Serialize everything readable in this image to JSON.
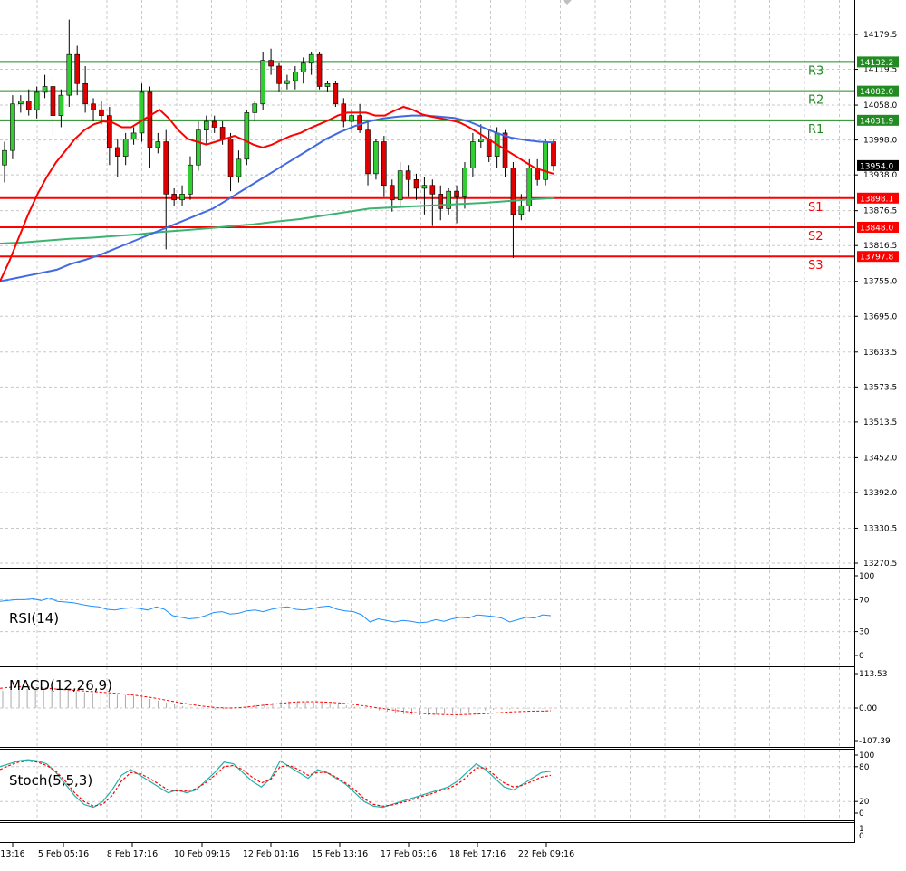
{
  "chart_data": {
    "type": "candlestick",
    "x_tick_labels": [
      "13:16",
      "5 Feb 05:16",
      "8 Feb 17:16",
      "10 Feb 09:16",
      "12 Feb 01:16",
      "15 Feb 13:16",
      "17 Feb 05:16",
      "18 Feb 17:16",
      "22 Feb 09:16"
    ],
    "y_tick_labels": [
      "14179.5",
      "14119.5",
      "14058.0",
      "13998.0",
      "13938.0",
      "13876.5",
      "13816.5",
      "13755.0",
      "13695.0",
      "13633.5",
      "13573.5",
      "13513.5",
      "13452.0",
      "13392.0",
      "13330.5",
      "13270.5"
    ],
    "ylim": [
      13264,
      14224
    ],
    "candles": [
      {
        "o": 13955,
        "h": 13995,
        "l": 13925,
        "c": 13980
      },
      {
        "o": 13980,
        "h": 14075,
        "l": 13965,
        "c": 14060
      },
      {
        "o": 14060,
        "h": 14075,
        "l": 14045,
        "c": 14065
      },
      {
        "o": 14065,
        "h": 14085,
        "l": 14040,
        "c": 14050
      },
      {
        "o": 14050,
        "h": 14090,
        "l": 14035,
        "c": 14080
      },
      {
        "o": 14080,
        "h": 14110,
        "l": 14070,
        "c": 14090
      },
      {
        "o": 14090,
        "h": 14105,
        "l": 14005,
        "c": 14040
      },
      {
        "o": 14040,
        "h": 14085,
        "l": 14020,
        "c": 14075
      },
      {
        "o": 14075,
        "h": 14205,
        "l": 14055,
        "c": 14145
      },
      {
        "o": 14145,
        "h": 14160,
        "l": 14075,
        "c": 14095
      },
      {
        "o": 14095,
        "h": 14125,
        "l": 14045,
        "c": 14060
      },
      {
        "o": 14060,
        "h": 14070,
        "l": 14030,
        "c": 14050
      },
      {
        "o": 14050,
        "h": 14065,
        "l": 14025,
        "c": 14040
      },
      {
        "o": 14040,
        "h": 14055,
        "l": 13955,
        "c": 13985
      },
      {
        "o": 13985,
        "h": 14000,
        "l": 13935,
        "c": 13970
      },
      {
        "o": 13970,
        "h": 14010,
        "l": 13955,
        "c": 14000
      },
      {
        "o": 14000,
        "h": 14020,
        "l": 13990,
        "c": 14010
      },
      {
        "o": 14010,
        "h": 14095,
        "l": 13995,
        "c": 14080
      },
      {
        "o": 14080,
        "h": 14090,
        "l": 13950,
        "c": 13985
      },
      {
        "o": 13985,
        "h": 14010,
        "l": 13975,
        "c": 13995
      },
      {
        "o": 13995,
        "h": 14015,
        "l": 13810,
        "c": 13905
      },
      {
        "o": 13905,
        "h": 13915,
        "l": 13885,
        "c": 13895
      },
      {
        "o": 13895,
        "h": 13920,
        "l": 13885,
        "c": 13905
      },
      {
        "o": 13905,
        "h": 13970,
        "l": 13895,
        "c": 13955
      },
      {
        "o": 13955,
        "h": 14030,
        "l": 13945,
        "c": 14015
      },
      {
        "o": 14015,
        "h": 14040,
        "l": 13990,
        "c": 14030
      },
      {
        "o": 14030,
        "h": 14040,
        "l": 14010,
        "c": 14020
      },
      {
        "o": 14020,
        "h": 14030,
        "l": 13990,
        "c": 14000
      },
      {
        "o": 14000,
        "h": 14010,
        "l": 13910,
        "c": 13935
      },
      {
        "o": 13935,
        "h": 13980,
        "l": 13925,
        "c": 13965
      },
      {
        "o": 13965,
        "h": 14050,
        "l": 13955,
        "c": 14045
      },
      {
        "o": 14045,
        "h": 14065,
        "l": 14030,
        "c": 14060
      },
      {
        "o": 14060,
        "h": 14150,
        "l": 14050,
        "c": 14135
      },
      {
        "o": 14135,
        "h": 14155,
        "l": 14110,
        "c": 14125
      },
      {
        "o": 14125,
        "h": 14130,
        "l": 14080,
        "c": 14095
      },
      {
        "o": 14095,
        "h": 14110,
        "l": 14085,
        "c": 14100
      },
      {
        "o": 14100,
        "h": 14125,
        "l": 14085,
        "c": 14115
      },
      {
        "o": 14115,
        "h": 14140,
        "l": 14095,
        "c": 14130
      },
      {
        "o": 14130,
        "h": 14150,
        "l": 14110,
        "c": 14145
      },
      {
        "o": 14145,
        "h": 14150,
        "l": 14085,
        "c": 14090
      },
      {
        "o": 14090,
        "h": 14100,
        "l": 14080,
        "c": 14095
      },
      {
        "o": 14095,
        "h": 14100,
        "l": 14055,
        "c": 14060
      },
      {
        "o": 14060,
        "h": 14070,
        "l": 14020,
        "c": 14030
      },
      {
        "o": 14030,
        "h": 14050,
        "l": 14015,
        "c": 14040
      },
      {
        "o": 14040,
        "h": 14060,
        "l": 14010,
        "c": 14015
      },
      {
        "o": 14015,
        "h": 14030,
        "l": 13920,
        "c": 13940
      },
      {
        "o": 13940,
        "h": 14000,
        "l": 13930,
        "c": 13995
      },
      {
        "o": 13995,
        "h": 14005,
        "l": 13900,
        "c": 13920
      },
      {
        "o": 13920,
        "h": 13930,
        "l": 13875,
        "c": 13895
      },
      {
        "o": 13895,
        "h": 13960,
        "l": 13885,
        "c": 13945
      },
      {
        "o": 13945,
        "h": 13955,
        "l": 13900,
        "c": 13930
      },
      {
        "o": 13930,
        "h": 13940,
        "l": 13895,
        "c": 13915
      },
      {
        "o": 13915,
        "h": 13935,
        "l": 13870,
        "c": 13920
      },
      {
        "o": 13920,
        "h": 13930,
        "l": 13850,
        "c": 13905
      },
      {
        "o": 13905,
        "h": 13920,
        "l": 13860,
        "c": 13880
      },
      {
        "o": 13880,
        "h": 13915,
        "l": 13870,
        "c": 13910
      },
      {
        "o": 13910,
        "h": 13920,
        "l": 13855,
        "c": 13900
      },
      {
        "o": 13900,
        "h": 13960,
        "l": 13880,
        "c": 13950
      },
      {
        "o": 13950,
        "h": 14010,
        "l": 13935,
        "c": 13995
      },
      {
        "o": 13995,
        "h": 14025,
        "l": 13985,
        "c": 14000
      },
      {
        "o": 14000,
        "h": 14015,
        "l": 13960,
        "c": 13970
      },
      {
        "o": 13970,
        "h": 14020,
        "l": 13950,
        "c": 14010
      },
      {
        "o": 14010,
        "h": 14015,
        "l": 13935,
        "c": 13950
      },
      {
        "o": 13950,
        "h": 13960,
        "l": 13795,
        "c": 13870
      },
      {
        "o": 13870,
        "h": 13905,
        "l": 13860,
        "c": 13885
      },
      {
        "o": 13885,
        "h": 13965,
        "l": 13875,
        "c": 13950
      },
      {
        "o": 13950,
        "h": 13965,
        "l": 13920,
        "c": 13930
      },
      {
        "o": 13930,
        "h": 14000,
        "l": 13920,
        "c": 13995
      },
      {
        "o": 13995,
        "h": 14000,
        "l": 13945,
        "c": 13954
      }
    ],
    "ma_red": [
      13755,
      13790,
      13830,
      13870,
      13905,
      13935,
      13960,
      13980,
      14000,
      14015,
      14025,
      14030,
      14028,
      14020,
      14020,
      14030,
      14040,
      14050,
      14035,
      14015,
      14000,
      13995,
      13990,
      13995,
      14000,
      14005,
      13998,
      13990,
      13985,
      13990,
      13998,
      14005,
      14010,
      14018,
      14025,
      14032,
      14040,
      14045,
      14045,
      14045,
      14040,
      14040,
      14048,
      14055,
      14050,
      14042,
      14038,
      14035,
      14032,
      14028,
      14020,
      14010,
      14000,
      13990,
      13980,
      13970,
      13960,
      13950,
      13945,
      13940
    ],
    "ma_blue": [
      13755,
      13760,
      13765,
      13770,
      13775,
      13785,
      13792,
      13800,
      13810,
      13820,
      13830,
      13840,
      13850,
      13860,
      13870,
      13880,
      13895,
      13910,
      13925,
      13940,
      13955,
      13970,
      13985,
      14000,
      14012,
      14022,
      14030,
      14035,
      14038,
      14040,
      14040,
      14038,
      14036,
      14030,
      14020,
      14010,
      14002,
      13998,
      13995,
      13994
    ],
    "ma_green": [
      13820,
      13822,
      13825,
      13828,
      13830,
      13833,
      13836,
      13840,
      13843,
      13846,
      13850,
      13853,
      13858,
      13862,
      13868,
      13874,
      13880,
      13882,
      13884,
      13886,
      13888,
      13890,
      13893,
      13896,
      13898
    ],
    "levels": [
      {
        "name": "R3",
        "value": 14132.2,
        "color": "#228b22",
        "label": "14132.2"
      },
      {
        "name": "R2",
        "value": 14082.0,
        "color": "#228b22",
        "label": "14082.0"
      },
      {
        "name": "R1",
        "value": 14031.9,
        "color": "#228b22",
        "label": "14031.9"
      },
      {
        "name": "S1",
        "value": 13898.1,
        "color": "#ff0000",
        "label": "13898.1"
      },
      {
        "name": "S2",
        "value": 13848.0,
        "color": "#ff0000",
        "label": "13848.0"
      },
      {
        "name": "S3",
        "value": 13797.8,
        "color": "#ff0000",
        "label": "13797.8"
      }
    ],
    "current_price": {
      "value": 13954.0,
      "label": "13954.0"
    },
    "rsi": {
      "label": "RSI(14)",
      "ticks": [
        "100",
        "70",
        "30",
        "0"
      ],
      "values": [
        68,
        69,
        70,
        70,
        71,
        69,
        72,
        68,
        67,
        66,
        64,
        62,
        61,
        58,
        57,
        59,
        60,
        59,
        57,
        61,
        58,
        50,
        48,
        46,
        47,
        50,
        54,
        55,
        52,
        53,
        56,
        57,
        55,
        58,
        60,
        61,
        58,
        57,
        59,
        61,
        62,
        58,
        56,
        55,
        51,
        42,
        46,
        44,
        42,
        44,
        43,
        41,
        42,
        45,
        43,
        46,
        48,
        47,
        51,
        50,
        49,
        47,
        42,
        45,
        48,
        47,
        51,
        50
      ]
    },
    "macd": {
      "label": "MACD(12,26,9)",
      "ticks": [
        "113.53",
        "0.00",
        "-107.39"
      ],
      "hist": [
        57,
        60,
        62,
        63,
        64,
        63,
        62,
        60,
        58,
        55,
        52,
        50,
        48,
        46,
        44,
        42,
        40,
        36,
        30,
        24,
        18,
        12,
        6,
        2,
        -2,
        -4,
        -5,
        -4,
        -2,
        2,
        6,
        10,
        14,
        18,
        20,
        22,
        22,
        21,
        20,
        18,
        16,
        12,
        8,
        4,
        0,
        -4,
        -8,
        -12,
        -16,
        -20,
        -22,
        -24,
        -24,
        -22,
        -20,
        -18,
        -16,
        -14,
        -10,
        -8,
        -6,
        -4,
        -4,
        -3,
        -2,
        -2,
        -2,
        -1
      ],
      "signal": [
        65,
        68,
        70,
        70,
        68,
        66,
        64,
        62,
        60,
        58,
        56,
        54,
        52,
        50,
        48,
        45,
        42,
        38,
        34,
        29,
        24,
        19,
        14,
        10,
        6,
        3,
        1,
        0,
        1,
        3,
        6,
        9,
        12,
        15,
        18,
        20,
        21,
        21,
        20,
        19,
        17,
        14,
        11,
        7,
        3,
        -1,
        -5,
        -9,
        -12,
        -15,
        -18,
        -20,
        -21,
        -22,
        -22,
        -21,
        -20,
        -19,
        -17,
        -15,
        -13,
        -12,
        -11,
        -10,
        -10,
        -9
      ]
    },
    "stoch": {
      "label": "Stoch(5,5,3)",
      "ticks": [
        "100",
        "80",
        "20",
        "0"
      ],
      "k": [
        80,
        85,
        90,
        92,
        90,
        85,
        70,
        50,
        30,
        15,
        10,
        20,
        40,
        65,
        75,
        65,
        55,
        45,
        35,
        40,
        35,
        40,
        55,
        70,
        88,
        85,
        70,
        55,
        45,
        60,
        90,
        80,
        70,
        60,
        75,
        70,
        60,
        50,
        35,
        20,
        12,
        10,
        15,
        20,
        25,
        30,
        35,
        40,
        45,
        55,
        70,
        85,
        75,
        60,
        45,
        40,
        50,
        60,
        70,
        72
      ],
      "d": [
        75,
        82,
        88,
        90,
        88,
        82,
        72,
        55,
        35,
        20,
        12,
        15,
        30,
        55,
        70,
        68,
        60,
        50,
        40,
        38,
        38,
        42,
        52,
        65,
        80,
        82,
        75,
        62,
        52,
        58,
        80,
        82,
        75,
        65,
        70,
        70,
        62,
        52,
        40,
        25,
        15,
        12,
        14,
        18,
        22,
        28,
        32,
        38,
        42,
        50,
        62,
        78,
        78,
        65,
        52,
        45,
        48,
        55,
        62,
        65
      ]
    },
    "extra_pane_ticks": [
      "1",
      "0"
    ]
  }
}
